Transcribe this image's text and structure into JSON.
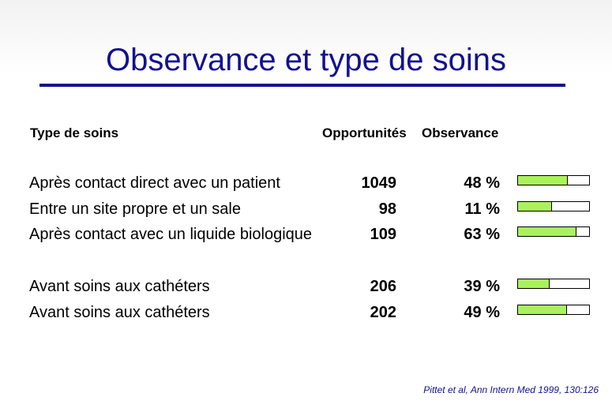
{
  "slide": {
    "title": "Observance et type de soins",
    "headers": {
      "type": "Type de soins",
      "opportunities": "Opportunités",
      "observance": "Observance"
    },
    "rows": [
      {
        "label": "Après contact direct avec un patient",
        "opportunities": "1049",
        "observance": "48 %",
        "fraction": 0.7
      },
      {
        "label": "Entre un site propre et un sale",
        "opportunities": "98",
        "observance": "11 %",
        "fraction": 0.48
      },
      {
        "label": "Après contact avec un liquide biologique",
        "opportunities": "109",
        "observance": "63 %",
        "fraction": 0.82
      },
      {
        "label": "Avant soins aux cathéters",
        "opportunities": "206",
        "observance": "39 %",
        "fraction": 0.44
      },
      {
        "label": "Avant soins aux cathéters",
        "opportunities": "202",
        "observance": "49 %",
        "fraction": 0.69
      }
    ],
    "citation": "Pittet et al, Ann Intern Med 1999, 130:126",
    "colors": {
      "title": "#13118f",
      "bar_fill": "#aaf25c",
      "bar_border": "#000000"
    }
  }
}
